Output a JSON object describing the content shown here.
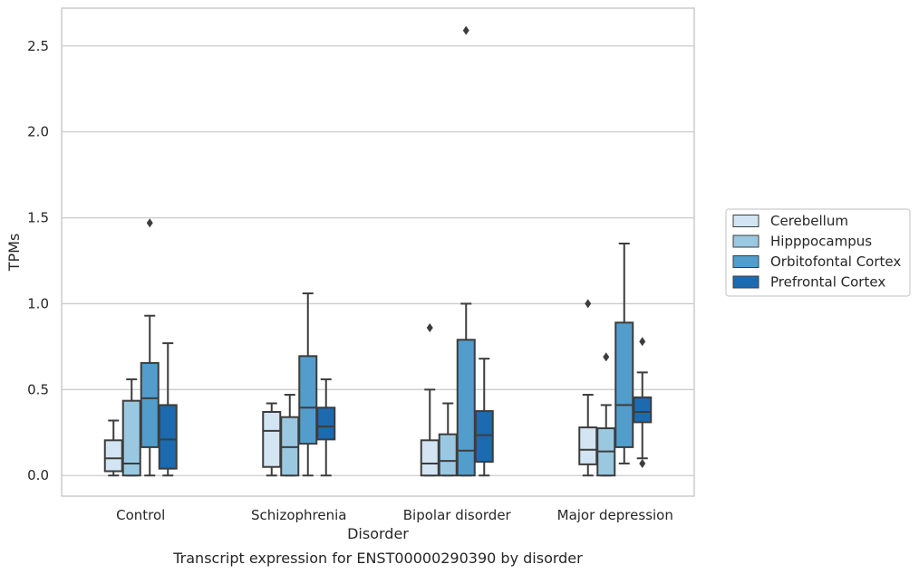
{
  "chart_data": {
    "type": "box",
    "title": "",
    "caption": "Transcript expression for ENST00000290390 by disorder",
    "xlabel": "Disorder",
    "ylabel": "TPMs",
    "ylim": [
      -0.12,
      2.72
    ],
    "yticks": [
      "0.0",
      "0.5",
      "1.0",
      "1.5",
      "2.0",
      "2.5"
    ],
    "grid": "horizontal",
    "legend_position": "right",
    "categories": [
      "Control",
      "Schizophrenia",
      "Bipolar disorder",
      "Major depression"
    ],
    "series": [
      {
        "name": "Cerebellum",
        "color": "#d3e4f3",
        "boxes": [
          {
            "whisker_low": 0.0,
            "q1": 0.025,
            "median": 0.1,
            "q3": 0.205,
            "whisker_high": 0.32,
            "outliers": []
          },
          {
            "whisker_low": 0.0,
            "q1": 0.05,
            "median": 0.26,
            "q3": 0.37,
            "whisker_high": 0.42,
            "outliers": []
          },
          {
            "whisker_low": 0.0,
            "q1": 0.0,
            "median": 0.07,
            "q3": 0.205,
            "whisker_high": 0.5,
            "outliers": [
              0.86
            ]
          },
          {
            "whisker_low": 0.0,
            "q1": 0.065,
            "median": 0.15,
            "q3": 0.28,
            "whisker_high": 0.47,
            "outliers": [
              1.0
            ]
          }
        ]
      },
      {
        "name": "Hipppocampus",
        "color": "#9ac8e0",
        "boxes": [
          {
            "whisker_low": 0.0,
            "q1": 0.0,
            "median": 0.07,
            "q3": 0.435,
            "whisker_high": 0.56,
            "outliers": []
          },
          {
            "whisker_low": 0.0,
            "q1": 0.0,
            "median": 0.165,
            "q3": 0.34,
            "whisker_high": 0.47,
            "outliers": []
          },
          {
            "whisker_low": 0.0,
            "q1": 0.0,
            "median": 0.085,
            "q3": 0.24,
            "whisker_high": 0.42,
            "outliers": []
          },
          {
            "whisker_low": 0.0,
            "q1": 0.0,
            "median": 0.14,
            "q3": 0.275,
            "whisker_high": 0.41,
            "outliers": [
              0.69
            ]
          }
        ]
      },
      {
        "name": "Orbitofontal Cortex",
        "color": "#529dcc",
        "boxes": [
          {
            "whisker_low": 0.0,
            "q1": 0.165,
            "median": 0.45,
            "q3": 0.655,
            "whisker_high": 0.93,
            "outliers": [
              1.47
            ]
          },
          {
            "whisker_low": 0.0,
            "q1": 0.185,
            "median": 0.395,
            "q3": 0.695,
            "whisker_high": 1.06,
            "outliers": []
          },
          {
            "whisker_low": 0.0,
            "q1": 0.0,
            "median": 0.145,
            "q3": 0.79,
            "whisker_high": 1.0,
            "outliers": [
              2.59
            ]
          },
          {
            "whisker_low": 0.07,
            "q1": 0.165,
            "median": 0.41,
            "q3": 0.89,
            "whisker_high": 1.35,
            "outliers": []
          }
        ]
      },
      {
        "name": "Prefrontal Cortex",
        "color": "#1c6aaf",
        "boxes": [
          {
            "whisker_low": 0.0,
            "q1": 0.04,
            "median": 0.21,
            "q3": 0.41,
            "whisker_high": 0.77,
            "outliers": []
          },
          {
            "whisker_low": 0.0,
            "q1": 0.21,
            "median": 0.285,
            "q3": 0.395,
            "whisker_high": 0.56,
            "outliers": []
          },
          {
            "whisker_low": 0.0,
            "q1": 0.08,
            "median": 0.235,
            "q3": 0.375,
            "whisker_high": 0.68,
            "outliers": []
          },
          {
            "whisker_low": 0.1,
            "q1": 0.31,
            "median": 0.37,
            "q3": 0.455,
            "whisker_high": 0.6,
            "outliers": [
              0.78,
              0.07
            ]
          }
        ]
      }
    ]
  }
}
